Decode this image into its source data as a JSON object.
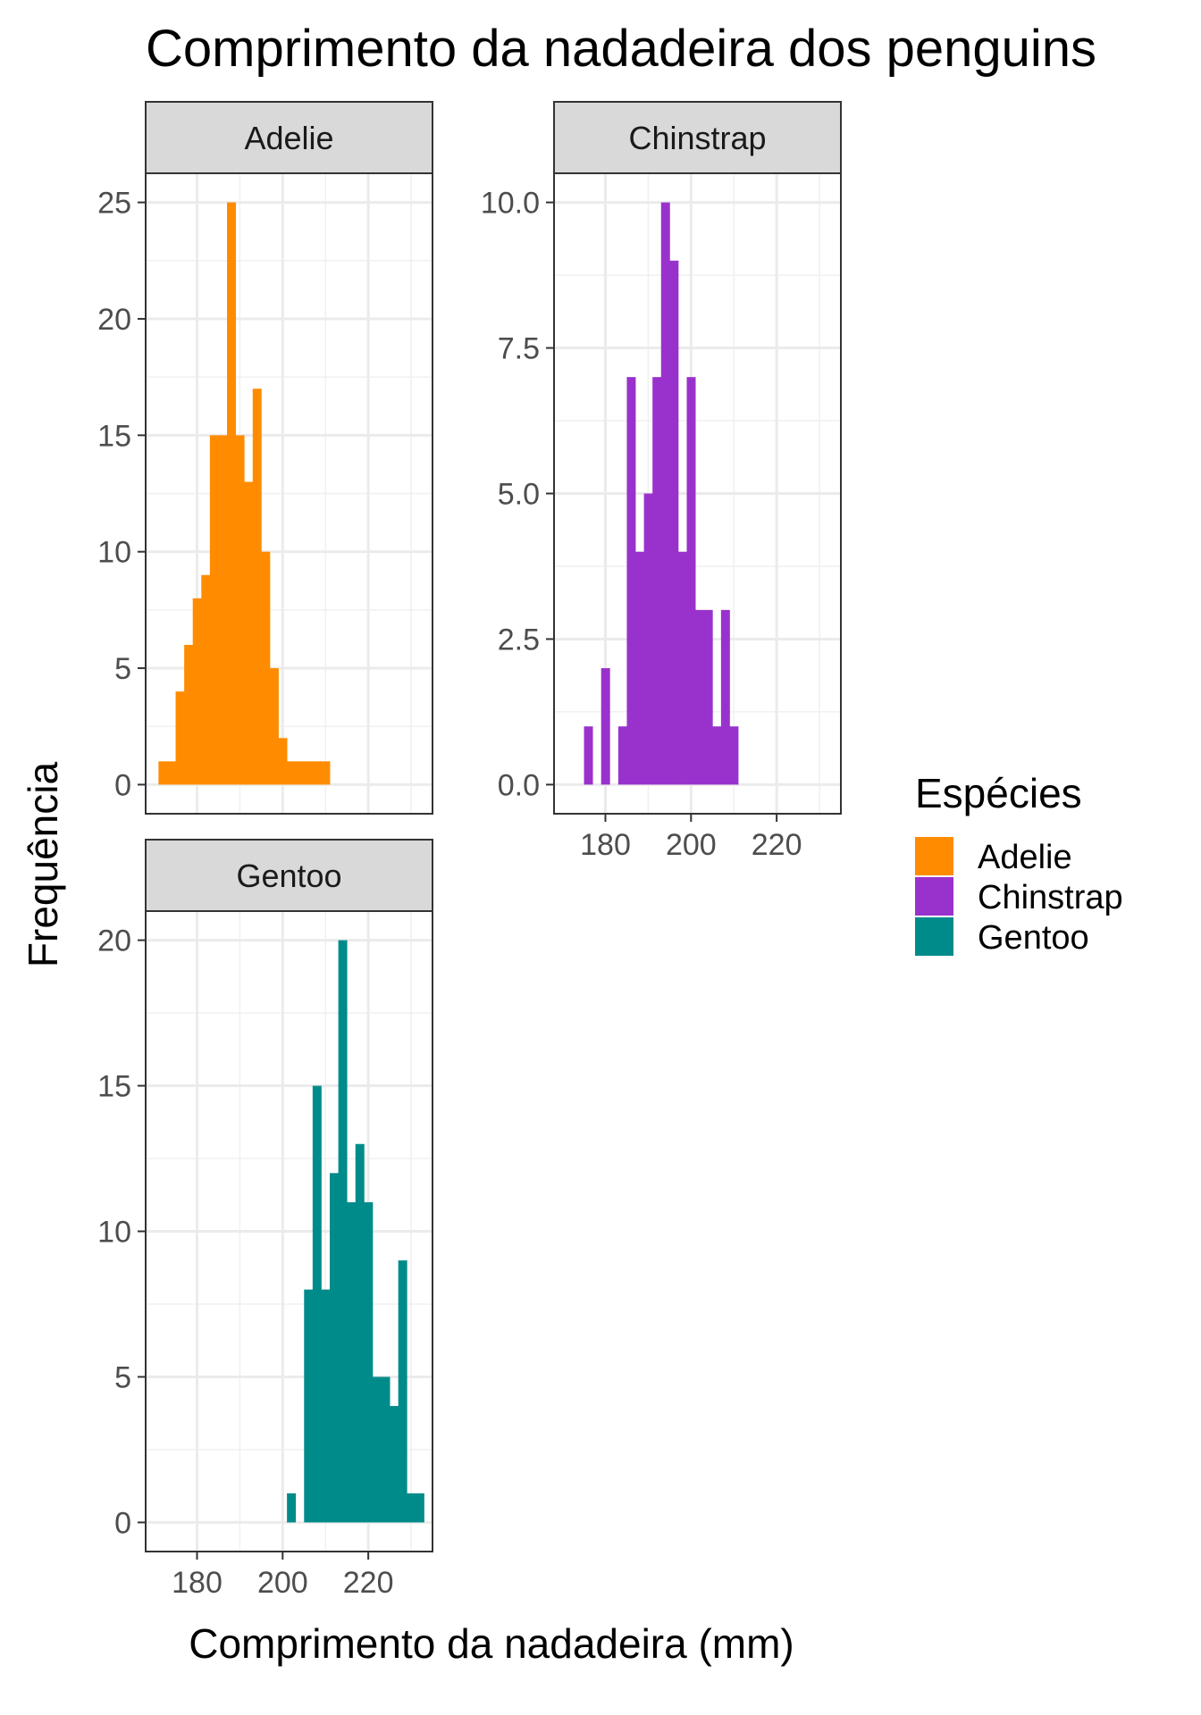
{
  "chart_data": {
    "type": "bar",
    "title": "Comprimento da nadadeira dos penguins",
    "xlabel": "Comprimento da nadadeira (mm)",
    "ylabel": "Frequência",
    "legend": {
      "title": "Espécies",
      "position": "right",
      "items": [
        {
          "label": "Adelie",
          "color": "#ff8c00"
        },
        {
          "label": "Chinstrap",
          "color": "#9932cc"
        },
        {
          "label": "Gentoo",
          "color": "#008b8b"
        }
      ]
    },
    "xlim": [
      168,
      235
    ],
    "x_ticks": [
      180,
      200,
      220
    ],
    "x_tick_labels": [
      "180",
      "200",
      "220"
    ],
    "bin_width": 2,
    "grid": true,
    "facets": [
      {
        "name": "Adelie",
        "color": "#ff8c00",
        "ylim": [
          -1.25,
          26.25
        ],
        "y_ticks": [
          0,
          5,
          10,
          15,
          20,
          25
        ],
        "y_tick_labels": [
          "0",
          "5",
          "10",
          "15",
          "20",
          "25"
        ],
        "bins_x": [
          172,
          174,
          176,
          178,
          180,
          182,
          184,
          186,
          188,
          190,
          192,
          194,
          196,
          198,
          200,
          202,
          204,
          206,
          208,
          210
        ],
        "counts": [
          1,
          1,
          4,
          6,
          8,
          9,
          15,
          15,
          25,
          15,
          13,
          17,
          10,
          5,
          2,
          1,
          1,
          1,
          1,
          1
        ]
      },
      {
        "name": "Chinstrap",
        "color": "#9932cc",
        "ylim": [
          -0.5,
          10.5
        ],
        "y_ticks": [
          0,
          2.5,
          5,
          7.5,
          10
        ],
        "y_tick_labels": [
          "0.0",
          "2.5",
          "5.0",
          "7.5",
          "10.0"
        ],
        "bins_x": [
          176,
          178,
          180,
          182,
          184,
          186,
          188,
          190,
          192,
          194,
          196,
          198,
          200,
          202,
          204,
          206,
          208,
          210,
          212
        ],
        "counts": [
          1,
          0,
          2,
          0,
          1,
          7,
          4,
          5,
          7,
          10,
          9,
          4,
          7,
          3,
          3,
          1,
          3,
          1,
          0
        ]
      },
      {
        "name": "Gentoo",
        "color": "#008b8b",
        "ylim": [
          -1,
          21
        ],
        "y_ticks": [
          0,
          5,
          10,
          15,
          20
        ],
        "y_tick_labels": [
          "0",
          "5",
          "10",
          "15",
          "20"
        ],
        "bins_x": [
          202,
          204,
          206,
          208,
          210,
          212,
          214,
          216,
          218,
          220,
          222,
          224,
          226,
          228,
          230,
          232
        ],
        "counts": [
          1,
          0,
          8,
          15,
          8,
          12,
          20,
          11,
          13,
          11,
          5,
          5,
          4,
          9,
          1,
          1
        ]
      }
    ]
  }
}
